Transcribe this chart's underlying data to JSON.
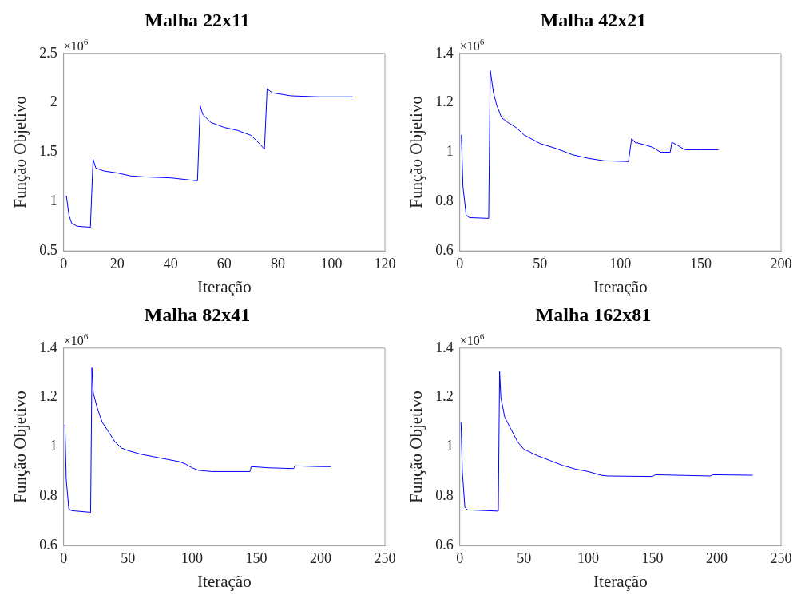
{
  "chart_data": [
    {
      "type": "line",
      "title": "Malha 22x11",
      "xlabel": "Iteração",
      "ylabel": "Função Objetivo",
      "annotations": [
        "×10$^{6}$"
      ],
      "xlim": [
        0,
        120
      ],
      "xticks": [
        0,
        20,
        40,
        60,
        80,
        100,
        120
      ],
      "ylim": [
        0.5,
        2.5
      ],
      "yticks": [
        0.5,
        1,
        1.5,
        2,
        2.5
      ],
      "grid": false,
      "legend": false,
      "series": [
        {
          "color": "#0000ff",
          "x": [
            1,
            2,
            3,
            5,
            10,
            11,
            12,
            15,
            20,
            25,
            30,
            40,
            50,
            51,
            52,
            55,
            60,
            65,
            70,
            73,
            75,
            76,
            78,
            85,
            95,
            108
          ],
          "values": [
            1.06,
            0.86,
            0.78,
            0.75,
            0.74,
            1.43,
            1.34,
            1.31,
            1.29,
            1.26,
            1.25,
            1.24,
            1.21,
            1.97,
            1.88,
            1.8,
            1.75,
            1.72,
            1.67,
            1.59,
            1.53,
            2.14,
            2.1,
            2.07,
            2.06,
            2.06
          ]
        }
      ]
    },
    {
      "type": "line",
      "title": "Malha 42x21",
      "xlabel": "Iteração",
      "ylabel": "Função Objetivo",
      "annotations": [
        "×10$^{6}$"
      ],
      "xlim": [
        0,
        200
      ],
      "xticks": [
        0,
        50,
        100,
        150,
        200
      ],
      "ylim": [
        0.6,
        1.4
      ],
      "yticks": [
        0.6,
        0.8,
        1,
        1.2,
        1.4
      ],
      "grid": false,
      "legend": false,
      "series": [
        {
          "color": "#0000ff",
          "x": [
            1,
            2,
            4,
            6,
            18,
            19,
            21,
            23,
            26,
            30,
            35,
            40,
            50,
            60,
            70,
            80,
            90,
            105,
            107,
            109,
            115,
            120,
            125,
            131,
            132,
            135,
            140,
            150,
            161
          ],
          "values": [
            1.07,
            0.86,
            0.745,
            0.735,
            0.732,
            1.33,
            1.24,
            1.19,
            1.14,
            1.12,
            1.1,
            1.07,
            1.035,
            1.015,
            0.99,
            0.975,
            0.965,
            0.962,
            1.055,
            1.04,
            1.03,
            1.02,
            1,
            1,
            1.04,
            1.03,
            1.01,
            1.01,
            1.01
          ]
        }
      ]
    },
    {
      "type": "line",
      "title": "Malha 82x41",
      "xlabel": "Iteração",
      "ylabel": "Função Objetivo",
      "annotations": [
        "×10$^{6}$"
      ],
      "xlim": [
        0,
        250
      ],
      "xticks": [
        0,
        50,
        100,
        150,
        200,
        250
      ],
      "ylim": [
        0.6,
        1.4
      ],
      "yticks": [
        0.6,
        0.8,
        1,
        1.2,
        1.4
      ],
      "grid": false,
      "legend": false,
      "series": [
        {
          "color": "#0000ff",
          "x": [
            1,
            2,
            4,
            6,
            21,
            22,
            23,
            26,
            30,
            35,
            40,
            45,
            50,
            60,
            70,
            80,
            90,
            95,
            100,
            105,
            115,
            145,
            146,
            160,
            179,
            180,
            200,
            208
          ],
          "values": [
            1.09,
            0.87,
            0.75,
            0.742,
            0.735,
            1.32,
            1.22,
            1.16,
            1.1,
            1.06,
            1.02,
            0.995,
            0.985,
            0.97,
            0.96,
            0.95,
            0.94,
            0.93,
            0.915,
            0.905,
            0.9,
            0.9,
            0.92,
            0.915,
            0.912,
            0.923,
            0.92,
            0.92
          ]
        }
      ]
    },
    {
      "type": "line",
      "title": "Malha 162x81",
      "xlabel": "Iteração",
      "ylabel": "Função Objetivo",
      "annotations": [
        "×10$^{6}$"
      ],
      "xlim": [
        0,
        250
      ],
      "xticks": [
        0,
        50,
        100,
        150,
        200,
        250
      ],
      "ylim": [
        0.6,
        1.4
      ],
      "yticks": [
        0.6,
        0.8,
        1,
        1.2,
        1.4
      ],
      "grid": false,
      "legend": false,
      "series": [
        {
          "color": "#0000ff",
          "x": [
            1,
            2,
            4,
            6,
            30,
            31,
            32,
            35,
            40,
            45,
            50,
            60,
            70,
            80,
            90,
            100,
            110,
            115,
            150,
            152,
            195,
            197,
            228
          ],
          "values": [
            1.1,
            0.9,
            0.755,
            0.745,
            0.74,
            1.305,
            1.2,
            1.12,
            1.07,
            1.02,
            0.99,
            0.965,
            0.945,
            0.925,
            0.91,
            0.9,
            0.885,
            0.882,
            0.88,
            0.887,
            0.882,
            0.887,
            0.885
          ]
        }
      ]
    }
  ]
}
